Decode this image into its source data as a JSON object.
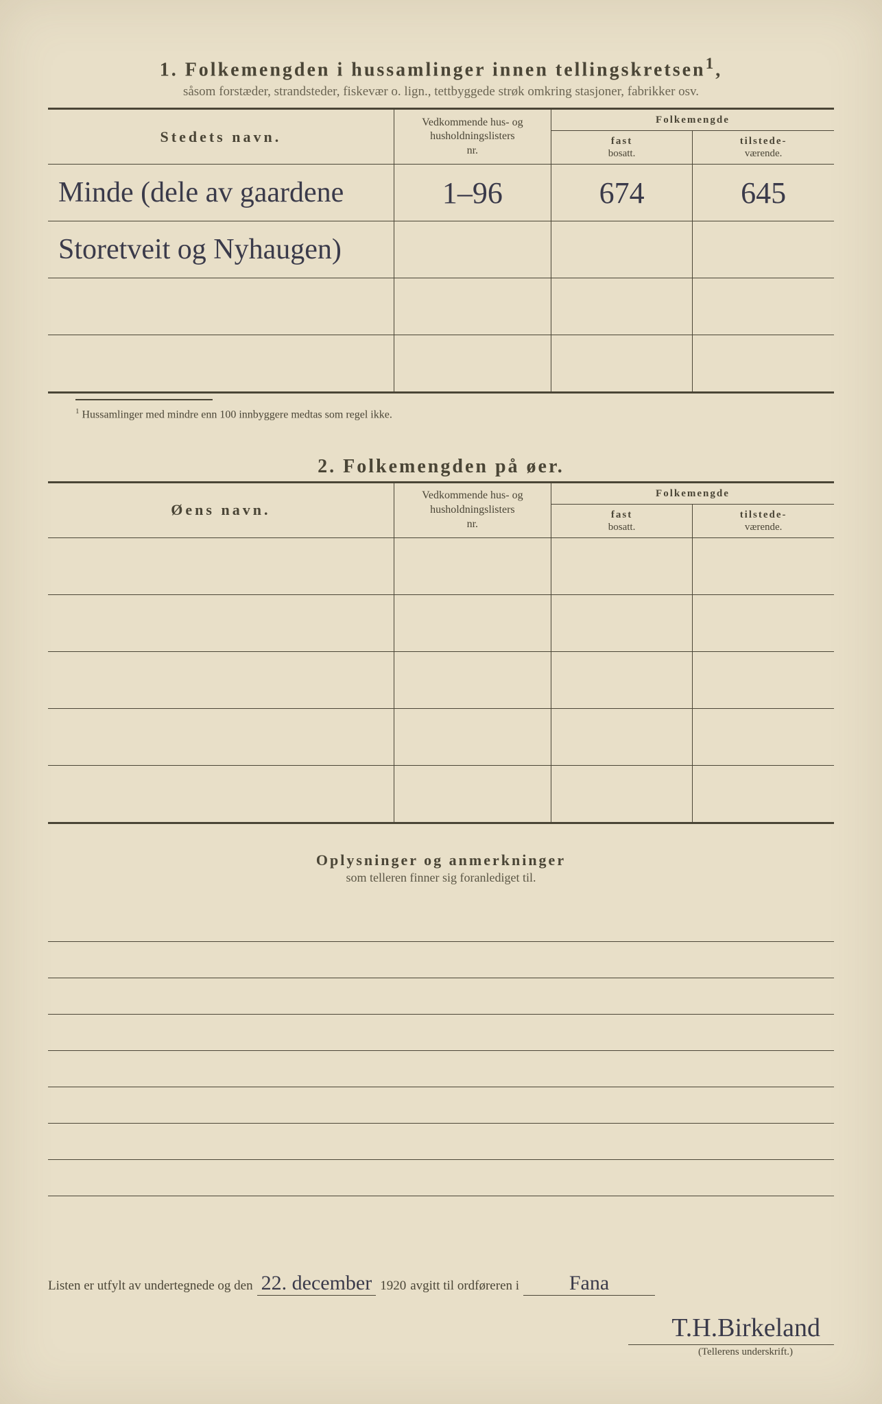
{
  "section1": {
    "number": "1.",
    "title": "Folkemengden i hussamlinger innen tellingskretsen",
    "title_sup": "1",
    "subtitle": "såsom forstæder, strandsteder, fiskevær o. lign., tettbyggede strøk omkring stasjoner, fabrikker osv.",
    "headers": {
      "name": "Stedets navn.",
      "nr_line1": "Vedkommende hus- og",
      "nr_line2": "husholdningslisters",
      "nr_line3": "nr.",
      "folkemengde": "Folkemengde",
      "fast_line1": "fast",
      "fast_line2": "bosatt.",
      "til_line1": "tilstede-",
      "til_line2": "værende."
    },
    "rows": [
      {
        "name": "Minde (dele av gaardene",
        "nr": "1–96",
        "fast": "674",
        "til": "645"
      },
      {
        "name": "Storetveit og Nyhaugen)",
        "nr": "",
        "fast": "",
        "til": ""
      },
      {
        "name": "",
        "nr": "",
        "fast": "",
        "til": ""
      },
      {
        "name": "",
        "nr": "",
        "fast": "",
        "til": ""
      }
    ],
    "footnote_marker": "1",
    "footnote": "Hussamlinger med mindre enn 100 innbyggere medtas som regel ikke."
  },
  "section2": {
    "number": "2.",
    "title": "Folkemengden på øer.",
    "headers": {
      "name": "Øens navn.",
      "nr_line1": "Vedkommende hus- og",
      "nr_line2": "husholdningslisters",
      "nr_line3": "nr.",
      "folkemengde": "Folkemengde",
      "fast_line1": "fast",
      "fast_line2": "bosatt.",
      "til_line1": "tilstede-",
      "til_line2": "værende."
    },
    "blank_rows": 5
  },
  "section3": {
    "title": "Oplysninger og anmerkninger",
    "subtitle": "som telleren finner sig foranlediget til.",
    "ruled_lines": 8
  },
  "signature": {
    "prefix": "Listen er utfylt av undertegnede og den",
    "date_hand": "22. december",
    "year": "1920",
    "middle": "avgitt til ordføreren i",
    "place_hand": "Fana",
    "sign_hand": "T.H.Birkeland",
    "caption": "(Tellerens underskrift.)"
  },
  "colors": {
    "paper": "#e8dfc8",
    "ink": "#4a4536",
    "pen": "#3a3a4a"
  }
}
